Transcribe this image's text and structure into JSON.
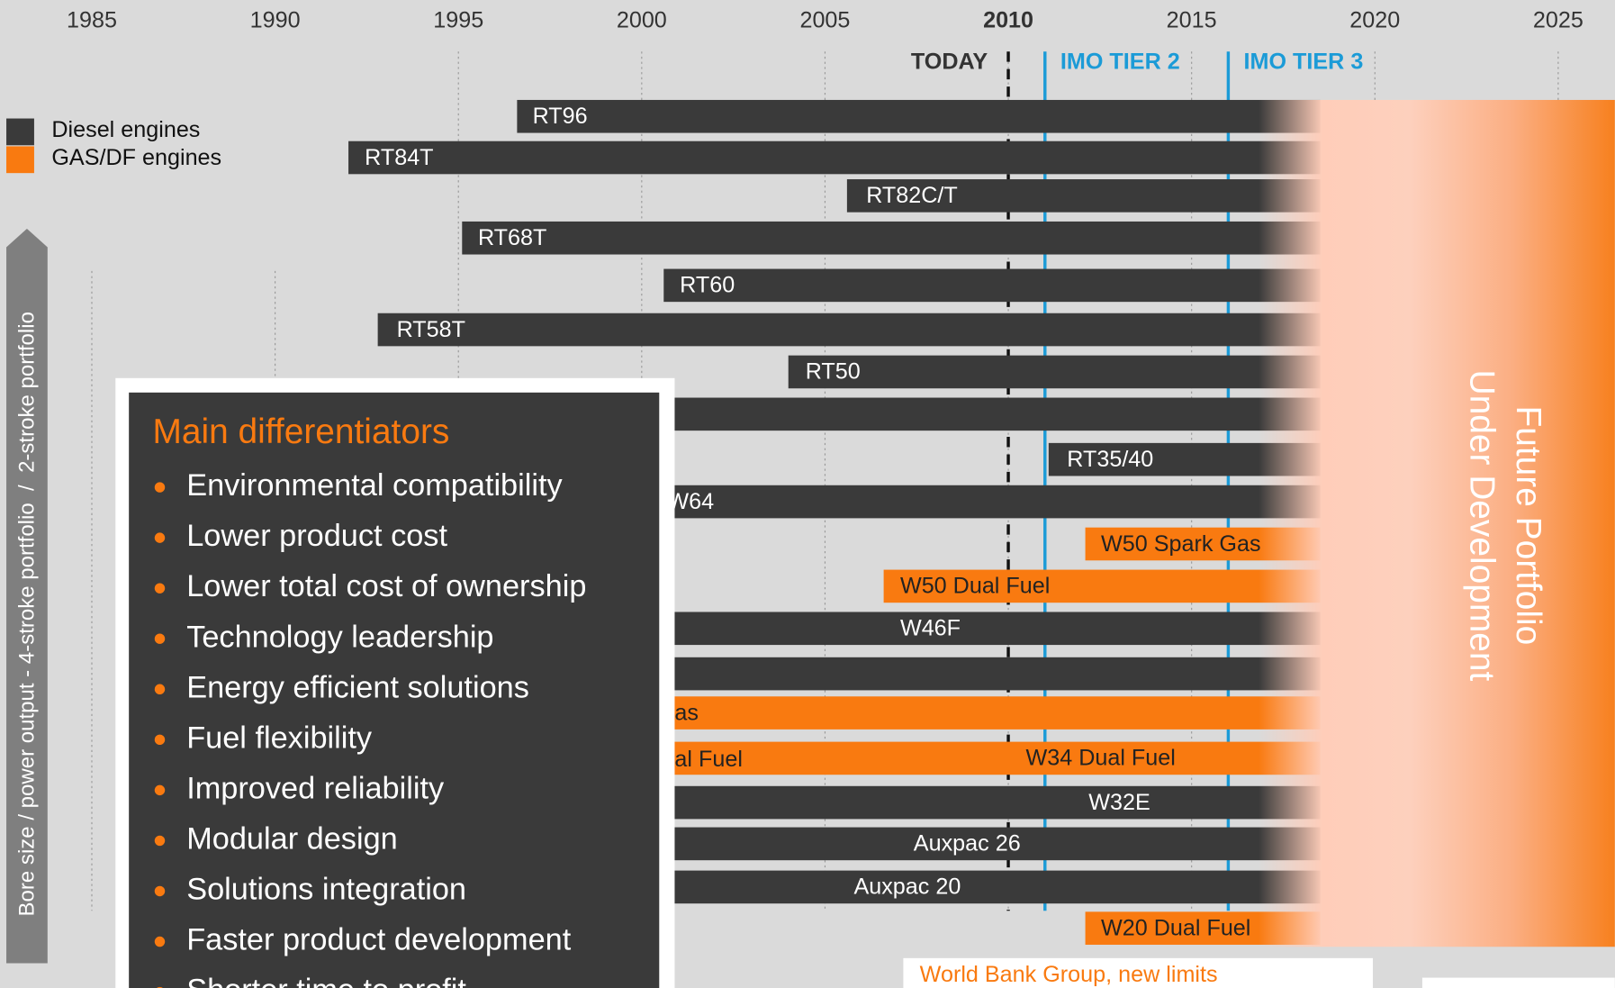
{
  "chart_data": {
    "type": "timeline",
    "xlim": [
      1982.5,
      2026.5
    ],
    "xticks": [
      1985,
      1990,
      1995,
      2000,
      2005,
      2010,
      2015,
      2020,
      2025
    ],
    "grid": true,
    "today": {
      "label": "TODAY",
      "value": 2010
    },
    "markers": [
      {
        "label": "IMO TIER 2",
        "value": 2011,
        "color": "#1b9bd7"
      },
      {
        "label": "IMO TIER 3",
        "value": 2016,
        "color": "#1b9bd7"
      }
    ],
    "series": [
      {
        "name": "Diesel engines",
        "color": "#3a3a3a"
      },
      {
        "name": "GAS/DF engines",
        "color": "#f97a10"
      }
    ],
    "bars": [
      {
        "name": "RT96",
        "start": 1996.6,
        "series": 0
      },
      {
        "name": "RT84T",
        "start": 1992.0,
        "series": 0
      },
      {
        "name": "RT82C/T",
        "start": 2005.6,
        "series": 0
      },
      {
        "name": "RT68T",
        "start": 1995.1,
        "series": 0
      },
      {
        "name": "RT60",
        "start": 2000.6,
        "series": 0
      },
      {
        "name": "RT58T",
        "start": 1992.8,
        "series": 0
      },
      {
        "name": "RT50",
        "start": 2004.0,
        "series": 0
      },
      {
        "name": null,
        "start": 1993,
        "series": 0
      },
      {
        "name": "RT35/40",
        "start": 2011.1,
        "series": 0
      },
      {
        "name": "W64",
        "start": 2000,
        "series": 0
      },
      {
        "name": "W50 Spark Gas",
        "start": 2012.1,
        "series": 1
      },
      {
        "name": "W50 Dual Fuel",
        "start": 2006.6,
        "series": 1
      },
      {
        "name": "W46F",
        "start": 1990,
        "series": 0
      },
      {
        "name": null,
        "start": 1989,
        "series": 0
      },
      {
        "name": "as",
        "start": 1996,
        "series": 1
      },
      {
        "name": "W34 Dual Fuel",
        "start": 1996,
        "series": 1
      },
      {
        "name": "W32E",
        "start": 1990,
        "series": 0
      },
      {
        "name": "Auxpac 26",
        "start": 1988,
        "series": 0
      },
      {
        "name": "Auxpac 20",
        "start": 1988,
        "series": 0
      },
      {
        "name": "W20 Dual Fuel",
        "start": 2012.1,
        "series": 1
      }
    ],
    "fragments": [
      "al Fuel"
    ],
    "y_axis_label": "Bore size / power output - 4-stroke portfolio  /  2-stroke portfolio",
    "future_label": [
      "Future Portfolio",
      "Under Development"
    ],
    "panel": {
      "title": "Main differentiators",
      "items": [
        "Environmental compatibility",
        "Lower product cost",
        "Lower total cost of ownership",
        "Technology leadership",
        "Energy efficient solutions",
        "Fuel flexibility",
        "Improved reliability",
        "Modular design",
        "Solutions integration",
        "Faster product development",
        "Shorter time to profit"
      ]
    },
    "note": "World Bank Group, new limits"
  }
}
